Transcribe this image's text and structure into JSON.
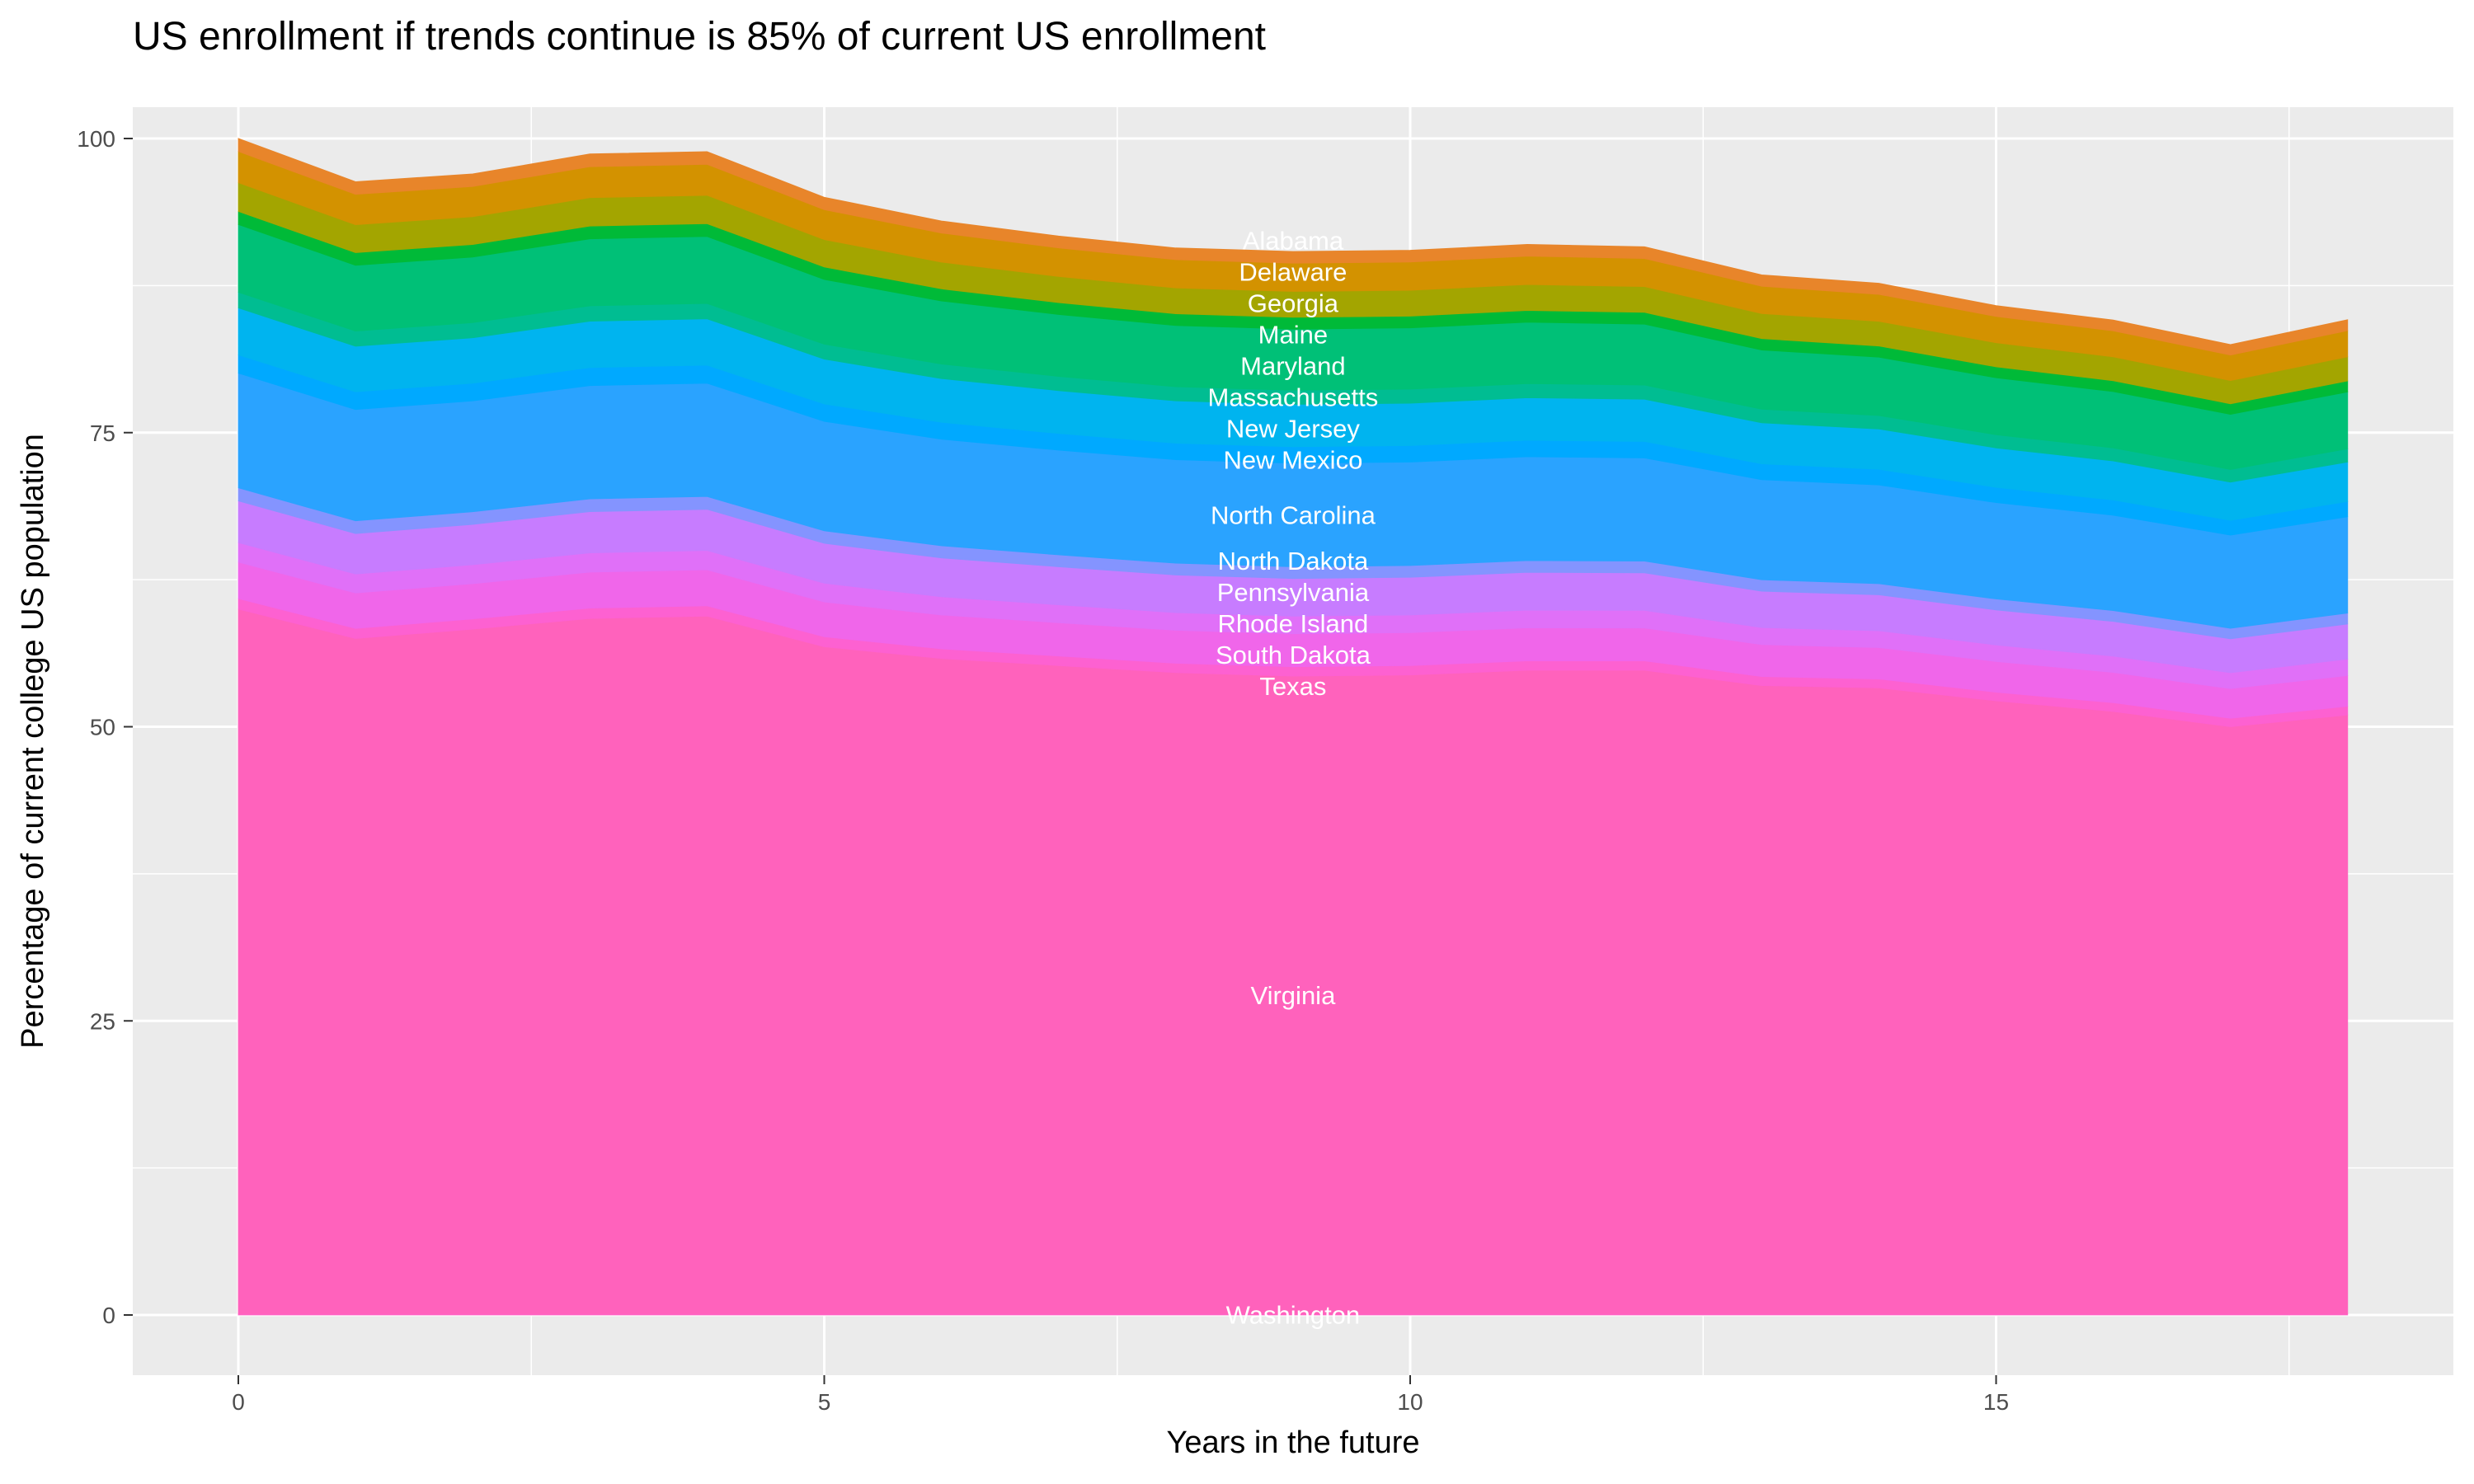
{
  "chart_data": {
    "type": "area",
    "stacked": true,
    "title": "US enrollment if trends continue is 85% of current US enrollment",
    "xlabel": "Years in the future",
    "ylabel": "Percentage of current college US population",
    "xlim": [
      0,
      18
    ],
    "ylim": [
      0,
      100
    ],
    "x_ticks": [
      "0",
      "5",
      "10",
      "15"
    ],
    "y_ticks": [
      "0",
      "25",
      "50",
      "75",
      "100"
    ],
    "grid": true,
    "legend": "none",
    "label_position_x": 9,
    "x": [
      0,
      1,
      2,
      3,
      4,
      5,
      6,
      7,
      8,
      9,
      10,
      11,
      12,
      13,
      14,
      15,
      16,
      17,
      18
    ],
    "series": [
      {
        "name": "Washington",
        "color": "#FF61C3",
        "values": [
          0.1,
          0.1,
          0.1,
          0.1,
          0.1,
          0.1,
          0.1,
          0.1,
          0.1,
          0.1,
          0.1,
          0.1,
          0.1,
          0.1,
          0.1,
          0.1,
          0.1,
          0.1,
          0.1
        ]
      },
      {
        "name": "Virginia",
        "color": "#FF62BC",
        "values": [
          59.9,
          57.4,
          58.2,
          59.1,
          59.3,
          56.7,
          55.7,
          55.1,
          54.5,
          54.2,
          54.3,
          54.7,
          54.7,
          53.4,
          53.2,
          52.1,
          51.2,
          49.9,
          50.9
        ]
      },
      {
        "name": "Texas",
        "color": "#FD61D1",
        "values": [
          0.89,
          0.86,
          0.86,
          0.88,
          0.88,
          0.85,
          0.82,
          0.81,
          0.8,
          0.8,
          0.8,
          0.8,
          0.8,
          0.77,
          0.76,
          0.74,
          0.74,
          0.72,
          0.74
        ]
      },
      {
        "name": "South Dakota",
        "color": "#F066EA",
        "values": [
          3.1,
          3.01,
          3.0,
          3.06,
          3.06,
          2.96,
          2.88,
          2.83,
          2.8,
          2.8,
          2.8,
          2.81,
          2.79,
          2.71,
          2.67,
          2.61,
          2.58,
          2.52,
          2.61
        ]
      },
      {
        "name": "Rhode Island",
        "color": "#E070F8",
        "values": [
          1.66,
          1.61,
          1.61,
          1.64,
          1.64,
          1.59,
          1.55,
          1.52,
          1.5,
          1.5,
          1.5,
          1.5,
          1.5,
          1.45,
          1.43,
          1.4,
          1.38,
          1.35,
          1.4
        ]
      },
      {
        "name": "Pennsylvania",
        "color": "#C77CFF",
        "values": [
          3.55,
          3.44,
          3.43,
          3.5,
          3.5,
          3.39,
          3.3,
          3.24,
          3.2,
          3.2,
          3.2,
          3.21,
          3.19,
          3.09,
          3.05,
          2.98,
          2.95,
          2.88,
          2.98
        ]
      },
      {
        "name": "North Dakota",
        "color": "#8494FF",
        "values": [
          1.11,
          1.08,
          1.07,
          1.09,
          1.09,
          1.06,
          1.03,
          1.01,
          1,
          1,
          1,
          1,
          1,
          0.97,
          0.95,
          0.93,
          0.92,
          0.9,
          0.93
        ]
      },
      {
        "name": "North Carolina",
        "color": "#2AA3FF",
        "values": [
          9.75,
          9.46,
          9.43,
          9.63,
          9.63,
          9.31,
          9.06,
          8.9,
          8.8,
          8.8,
          8.8,
          8.83,
          8.77,
          8.51,
          8.39,
          8.19,
          8.11,
          7.92,
          8.19
        ]
      },
      {
        "name": "New Mexico",
        "color": "#00A9FF",
        "values": [
          1.55,
          1.51,
          1.5,
          1.53,
          1.53,
          1.48,
          1.44,
          1.42,
          1.4,
          1.4,
          1.4,
          1.4,
          1.4,
          1.35,
          1.33,
          1.3,
          1.29,
          1.26,
          1.3
        ]
      },
      {
        "name": "New Jersey",
        "color": "#00B4EF",
        "values": [
          3.99,
          3.87,
          3.86,
          3.94,
          3.94,
          3.81,
          3.71,
          3.64,
          3.6,
          3.6,
          3.6,
          3.61,
          3.59,
          3.48,
          3.43,
          3.35,
          3.32,
          3.24,
          3.35
        ]
      },
      {
        "name": "Massachusetts",
        "color": "#00BD92",
        "values": [
          1.33,
          1.29,
          1.29,
          1.31,
          1.31,
          1.27,
          1.24,
          1.21,
          1.2,
          1.2,
          1.2,
          1.2,
          1.2,
          1.16,
          1.14,
          1.12,
          1.11,
          1.08,
          1.12
        ]
      },
      {
        "name": "Maryland",
        "color": "#00C077",
        "values": [
          5.76,
          5.59,
          5.57,
          5.69,
          5.69,
          5.5,
          5.36,
          5.26,
          5.2,
          5.2,
          5.2,
          5.22,
          5.18,
          5.03,
          4.96,
          4.84,
          4.79,
          4.68,
          4.84
        ]
      },
      {
        "name": "Maine",
        "color": "#00BA38",
        "values": [
          1.11,
          1.08,
          1.07,
          1.09,
          1.09,
          1.06,
          1.03,
          1.01,
          1,
          1,
          1,
          1,
          1,
          0.97,
          0.95,
          0.93,
          0.92,
          0.9,
          0.93
        ]
      },
      {
        "name": "Georgia",
        "color": "#A3A500",
        "values": [
          2.44,
          2.37,
          2.36,
          2.41,
          2.41,
          2.33,
          2.27,
          2.22,
          2.2,
          2.2,
          2.2,
          2.21,
          2.19,
          2.13,
          2.1,
          2.05,
          2.03,
          1.98,
          2.05
        ]
      },
      {
        "name": "Delaware",
        "color": "#D39200",
        "values": [
          2.66,
          2.58,
          2.57,
          2.63,
          2.63,
          2.54,
          2.47,
          2.43,
          2.4,
          2.4,
          2.4,
          2.41,
          2.39,
          2.32,
          2.29,
          2.23,
          2.21,
          2.16,
          2.23
        ]
      },
      {
        "name": "Alabama",
        "color": "#E8852A",
        "values": [
          1.11,
          1.08,
          1.07,
          1.09,
          1.09,
          1.06,
          1.03,
          1.01,
          1,
          1,
          1,
          1,
          1,
          0.97,
          0.95,
          0.93,
          0.92,
          0.9,
          0.93
        ]
      }
    ]
  },
  "colors": {
    "panel_background": "#EBEBEB",
    "grid": "#FFFFFF"
  }
}
